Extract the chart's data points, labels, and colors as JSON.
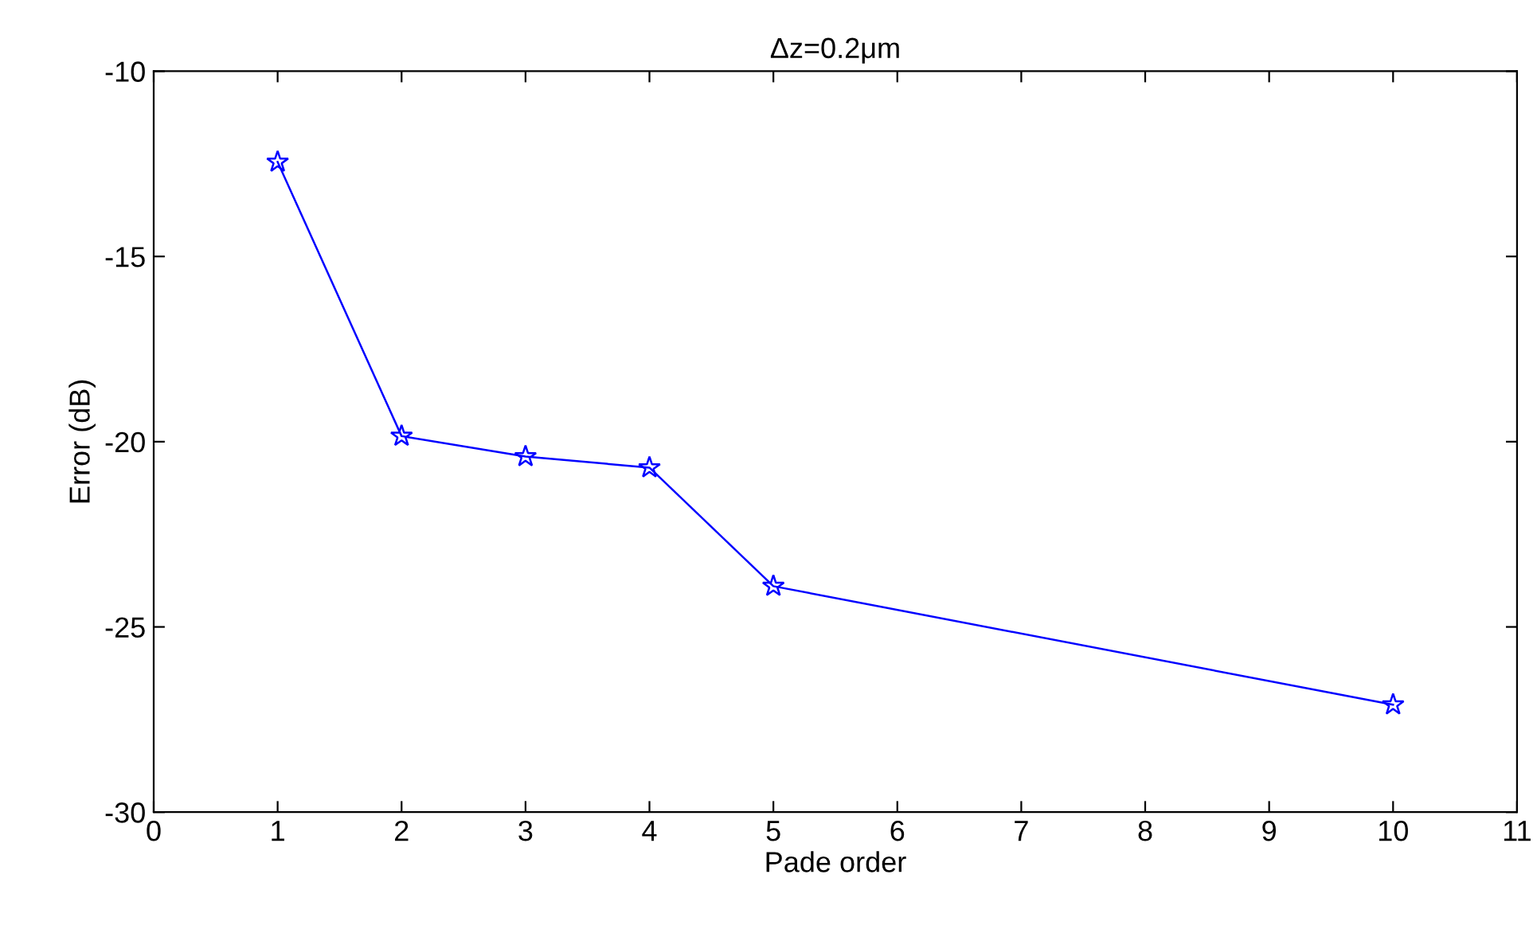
{
  "chart_data": {
    "type": "line",
    "title": "Δz=0.2μm",
    "xlabel": "Pade order",
    "ylabel": "Error (dB)",
    "x": [
      1,
      2,
      3,
      4,
      5,
      10
    ],
    "series": [
      {
        "color": "#0000ff",
        "values": [
          -12.45,
          -19.85,
          -20.4,
          -20.7,
          -23.9,
          -27.1
        ]
      }
    ],
    "xlim": [
      0,
      11
    ],
    "xticks": [
      0,
      1,
      2,
      3,
      4,
      5,
      6,
      7,
      8,
      9,
      10,
      11
    ],
    "ylim": [
      -30,
      -10
    ],
    "yticks": [
      -30,
      -25,
      -20,
      -15,
      -10
    ],
    "marker": "star",
    "line_style": "solid",
    "grid": false,
    "legend": false
  }
}
